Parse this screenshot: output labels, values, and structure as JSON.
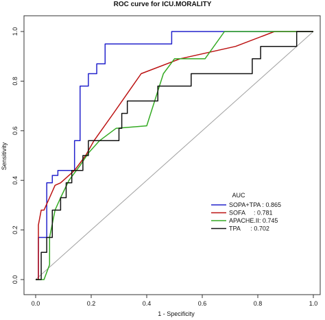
{
  "chart_data": {
    "type": "line",
    "title": "ROC curve for ICU.MORALITY",
    "xlabel": "1 - Specificity",
    "ylabel": "Sensitivity",
    "xlim": [
      0,
      1
    ],
    "ylim": [
      0,
      1
    ],
    "x_ticks": [
      "0.0",
      "0.2",
      "0.4",
      "0.6",
      "0.8",
      "1.0"
    ],
    "y_ticks": [
      "0.0",
      "0.2",
      "0.4",
      "0.6",
      "0.8",
      "1.0"
    ],
    "grid": false,
    "legend": {
      "title": "AUC",
      "placement": "bottom-right",
      "entries": [
        "SOPA+TPA : 0.865",
        "SOFA     : 0.781",
        "APACHE.II: 0.745",
        "TPA      : 0.702"
      ]
    },
    "reference_line": {
      "x": [
        0,
        1
      ],
      "y": [
        0,
        1
      ],
      "color": "#a0a0a0"
    },
    "series": [
      {
        "name": "SOPA+TPA",
        "color": "#2222cc",
        "x": [
          0,
          0.01,
          0.01,
          0.04,
          0.04,
          0.06,
          0.06,
          0.08,
          0.08,
          0.14,
          0.14,
          0.16,
          0.16,
          0.19,
          0.19,
          0.22,
          0.22,
          0.25,
          0.25,
          0.49,
          0.49,
          1.0
        ],
        "y": [
          0,
          0,
          0.17,
          0.17,
          0.39,
          0.39,
          0.42,
          0.42,
          0.44,
          0.44,
          0.56,
          0.56,
          0.78,
          0.78,
          0.83,
          0.83,
          0.87,
          0.87,
          0.95,
          0.95,
          1.0,
          1.0
        ]
      },
      {
        "name": "SOFA",
        "color": "#bb1111",
        "x": [
          0,
          0.01,
          0.01,
          0.02,
          0.03,
          0.05,
          0.07,
          0.09,
          0.14,
          0.18,
          0.21,
          0.28,
          0.38,
          0.52,
          0.72,
          0.86,
          1.0
        ],
        "y": [
          0,
          0,
          0.22,
          0.28,
          0.28,
          0.33,
          0.38,
          0.39,
          0.44,
          0.5,
          0.56,
          0.67,
          0.83,
          0.89,
          0.94,
          1.0,
          1.0
        ],
        "smooth": true
      },
      {
        "name": "APACHE.II",
        "color": "#33aa22",
        "x": [
          0,
          0.03,
          0.05,
          0.05,
          0.07,
          0.09,
          0.12,
          0.16,
          0.19,
          0.23,
          0.29,
          0.4,
          0.46,
          0.5,
          0.61,
          0.68,
          1.0
        ],
        "y": [
          0,
          0,
          0.06,
          0.17,
          0.28,
          0.33,
          0.4,
          0.46,
          0.51,
          0.56,
          0.61,
          0.62,
          0.83,
          0.89,
          0.89,
          1.0,
          1.0
        ],
        "smooth": true
      },
      {
        "name": "TPA",
        "color": "#111111",
        "x": [
          0,
          0.02,
          0.02,
          0.04,
          0.04,
          0.06,
          0.06,
          0.09,
          0.09,
          0.11,
          0.11,
          0.13,
          0.13,
          0.17,
          0.17,
          0.19,
          0.19,
          0.3,
          0.3,
          0.31,
          0.31,
          0.33,
          0.33,
          0.44,
          0.44,
          0.48,
          0.48,
          0.56,
          0.56,
          0.78,
          0.78,
          0.81,
          0.81,
          0.84,
          0.84,
          0.94,
          0.94,
          1.0
        ],
        "y": [
          0,
          0,
          0.11,
          0.11,
          0.17,
          0.17,
          0.28,
          0.28,
          0.33,
          0.33,
          0.39,
          0.39,
          0.44,
          0.44,
          0.5,
          0.5,
          0.56,
          0.56,
          0.61,
          0.61,
          0.67,
          0.67,
          0.72,
          0.72,
          0.78,
          0.78,
          0.78,
          0.78,
          0.83,
          0.83,
          0.89,
          0.89,
          0.94,
          0.94,
          0.94,
          0.94,
          1.0,
          1.0
        ]
      }
    ]
  }
}
